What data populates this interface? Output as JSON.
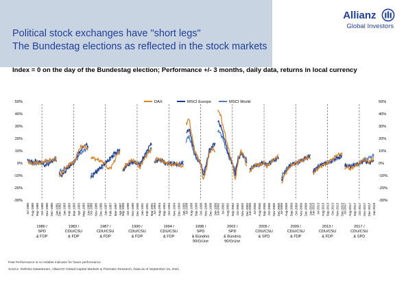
{
  "header": {
    "logo_text": "Allianz",
    "logo_mark": "allianz-eagle-logo",
    "logo_subtext": "Global Investors",
    "title_line1": "Political stock exchanges have \"short legs\"",
    "title_line2": "The Bundestag elections as reflected in the stock markets",
    "subtitle": "Index = 0 on the day of the Bundestag election; Performance +/- 3 months, daily data, returns in local currency"
  },
  "colors": {
    "brand": "#1f3f9b",
    "band": "#c9d4e2",
    "dax": "#d8822a",
    "msci_europe": "#1d3a8c",
    "msci_world": "#4f7bbd"
  },
  "chart_data": {
    "type": "line",
    "title": "",
    "xlabel": "",
    "ylabel": "",
    "ylim": [
      -0.3,
      0.5
    ],
    "yticks": [
      "50%",
      "40%",
      "30%",
      "20%",
      "10%",
      "0%",
      "-10%",
      "-20%",
      "-30%"
    ],
    "yticks_right": [
      "50%",
      "40%",
      "30%",
      "20%",
      "10%",
      "0%",
      "-10%",
      "-20%",
      "-30%"
    ],
    "grid": false,
    "legend_position": "top-center",
    "series_names": [
      "DAX",
      "MSCI Europe",
      "MSCI World"
    ],
    "election_markers": "dashed vertical line on each election day",
    "elections": [
      {
        "label_lines": [
          "1980 /",
          "SPD",
          "& FDP"
        ],
        "months": [
          "Jul-1980",
          "Aug-1980",
          "Sep-1980",
          "Oct-1980",
          "Nov-1980",
          "Dec-1980",
          "Jan-1981"
        ],
        "dax": [
          0.02,
          0.0,
          -0.01,
          0.01,
          0.0,
          0.0,
          0.02,
          0.01,
          0.03,
          0.02,
          0.04
        ],
        "msci_europe": [
          0.01,
          0.02,
          0.0,
          0.02,
          0.01,
          0.0,
          -0.02,
          -0.01,
          0.01,
          0.02,
          0.03
        ],
        "msci_world": [
          0.03,
          0.01,
          0.0,
          -0.01,
          0.01,
          0.0,
          0.01,
          0.02,
          0.01,
          0.03,
          0.05
        ]
      },
      {
        "label_lines": [
          "1983 /",
          "CDU/CSU",
          "& FDP"
        ],
        "months": [
          "Dec-1982",
          "Jan-1983",
          "Feb-1983",
          "Mar-1983",
          "Apr-1983",
          "May-1983",
          "Jun-1983"
        ],
        "dax": [
          -0.1,
          -0.08,
          -0.05,
          -0.02,
          0.0,
          0.0,
          0.06,
          0.12,
          0.14,
          0.13,
          0.11
        ],
        "msci_europe": [
          -0.09,
          -0.1,
          -0.07,
          -0.04,
          -0.02,
          0.0,
          0.05,
          0.09,
          0.12,
          0.15,
          0.14
        ],
        "msci_world": [
          -0.07,
          -0.06,
          -0.04,
          -0.03,
          -0.01,
          0.0,
          0.03,
          0.07,
          0.09,
          0.11,
          0.12
        ]
      },
      {
        "label_lines": [
          "1987 /",
          "CDU/CSU",
          "& FDP"
        ],
        "months": [
          "Oct-1986",
          "Nov-1986",
          "Dec-1986",
          "Jan-1987",
          "Feb-1987",
          "Mar-1987",
          "Apr-1987"
        ],
        "dax": [
          0.05,
          0.04,
          0.03,
          0.02,
          0.01,
          0.0,
          -0.05,
          -0.03,
          0.01,
          0.07,
          0.09
        ],
        "msci_europe": [
          -0.12,
          -0.09,
          -0.07,
          -0.04,
          -0.02,
          0.0,
          0.02,
          0.05,
          0.08,
          0.09,
          0.11
        ],
        "msci_world": [
          -0.1,
          -0.08,
          -0.06,
          -0.05,
          -0.03,
          0.0,
          0.02,
          0.04,
          0.06,
          0.08,
          0.1
        ]
      },
      {
        "label_lines": [
          "1990 /",
          "CDU/CSU",
          "& FDP"
        ],
        "months": [
          "Sep-1990",
          "Oct-1990",
          "Nov-1990",
          "Dec-1990",
          "Jan-1991",
          "Feb-1991",
          "Mar-1991"
        ],
        "dax": [
          -0.05,
          -0.02,
          0.0,
          0.03,
          0.01,
          0.0,
          -0.04,
          0.02,
          0.05,
          0.09,
          0.11
        ],
        "msci_europe": [
          -0.07,
          -0.03,
          -0.01,
          0.01,
          0.0,
          0.0,
          -0.02,
          0.04,
          0.08,
          0.13,
          0.16
        ],
        "msci_world": [
          -0.06,
          -0.03,
          -0.01,
          0.0,
          0.01,
          0.0,
          0.0,
          0.03,
          0.07,
          0.1,
          0.12
        ]
      },
      {
        "label_lines": [
          "1994 /",
          "CDU/CSU",
          "& FDP"
        ],
        "months": [
          "Jul-1994",
          "Aug-1994",
          "Sep-1994",
          "Oct-1994",
          "Nov-1994",
          "Dec-1994",
          "Jan-1995"
        ],
        "dax": [
          0.01,
          0.04,
          0.03,
          0.01,
          0.0,
          0.0,
          -0.02,
          -0.01,
          0.0,
          -0.03,
          -0.02
        ],
        "msci_europe": [
          0.0,
          0.02,
          0.03,
          0.01,
          -0.01,
          0.0,
          -0.01,
          0.0,
          -0.02,
          -0.01,
          0.0
        ],
        "msci_world": [
          0.01,
          0.03,
          0.02,
          0.01,
          0.0,
          0.0,
          0.0,
          -0.01,
          -0.01,
          0.0,
          0.01
        ]
      },
      {
        "label_lines": [
          "1998 /",
          "SPD",
          "& Bündnis",
          "90/Grüne"
        ],
        "months": [
          "Jul-1998",
          "Aug-1998",
          "Sep-1998",
          "Oct-1998",
          "Nov-1998",
          "Dec-1998",
          "Jan-1999"
        ],
        "dax": [
          0.32,
          0.36,
          0.22,
          0.1,
          0.05,
          0.0,
          -0.14,
          -0.04,
          0.08,
          0.12,
          0.1
        ],
        "msci_europe": [
          0.24,
          0.28,
          0.18,
          0.08,
          0.03,
          0.0,
          -0.1,
          -0.02,
          0.1,
          0.14,
          0.16
        ],
        "msci_world": [
          0.18,
          0.22,
          0.14,
          0.06,
          0.02,
          0.0,
          -0.08,
          0.0,
          0.09,
          0.12,
          0.15
        ]
      },
      {
        "label_lines": [
          "2002 /",
          "SPD",
          "& Bündnis",
          "90/Grüne"
        ],
        "months": [
          "Jun-2002",
          "Jul-2002",
          "Aug-2002",
          "Sep-2002",
          "Oct-2002",
          "Nov-2002",
          "Dec-2002"
        ],
        "dax": [
          0.44,
          0.38,
          0.28,
          0.18,
          0.08,
          0.0,
          -0.14,
          0.02,
          0.1,
          0.06,
          -0.03
        ],
        "msci_europe": [
          0.34,
          0.3,
          0.22,
          0.13,
          0.05,
          0.0,
          -0.09,
          0.03,
          0.08,
          0.05,
          0.0
        ],
        "msci_world": [
          0.26,
          0.24,
          0.18,
          0.1,
          0.04,
          0.0,
          -0.06,
          0.04,
          0.08,
          0.06,
          0.02
        ]
      },
      {
        "label_lines": [
          "2005 /",
          "CDU/CSU",
          "& SPD"
        ],
        "months": [
          "Jun-2005",
          "Jul-2005",
          "Aug-2005",
          "Sep-2005",
          "Oct-2005",
          "Nov-2005",
          "Dec-2005"
        ],
        "dax": [
          -0.07,
          -0.04,
          -0.02,
          -0.01,
          -0.01,
          0.0,
          -0.03,
          0.0,
          0.02,
          0.04,
          0.07
        ],
        "msci_europe": [
          -0.06,
          -0.04,
          -0.02,
          -0.02,
          0.0,
          0.0,
          -0.02,
          0.0,
          0.02,
          0.03,
          0.05
        ],
        "msci_world": [
          -0.05,
          -0.03,
          -0.02,
          -0.01,
          0.0,
          0.0,
          -0.01,
          0.01,
          0.02,
          0.03,
          0.04
        ]
      },
      {
        "label_lines": [
          "2009 /",
          "CDU/CSU",
          "& FDP"
        ],
        "months": [
          "Jul-2009",
          "Aug-2009",
          "Sep-2009",
          "Oct-2009",
          "Nov-2009",
          "Dec-2009",
          "Jan-2010"
        ],
        "dax": [
          -0.17,
          -0.1,
          -0.06,
          -0.03,
          -0.01,
          0.0,
          0.01,
          0.02,
          0.03,
          0.05,
          0.04
        ],
        "msci_europe": [
          -0.15,
          -0.09,
          -0.05,
          -0.02,
          -0.01,
          0.0,
          0.0,
          0.02,
          0.04,
          0.05,
          0.05
        ],
        "msci_world": [
          -0.12,
          -0.07,
          -0.04,
          -0.02,
          0.0,
          0.0,
          0.01,
          0.02,
          0.03,
          0.04,
          0.06
        ]
      },
      {
        "label_lines": [
          "2013 /",
          "CDU/CSU",
          "& FDP"
        ],
        "months": [
          "Jun-2013",
          "Jul-2013",
          "Aug-2013",
          "Sep-2013",
          "Oct-2013",
          "Nov-2013",
          "Dec-2013"
        ],
        "dax": [
          -0.08,
          -0.06,
          -0.04,
          -0.02,
          -0.01,
          0.0,
          0.02,
          0.04,
          0.06,
          0.07,
          0.08
        ],
        "msci_europe": [
          -0.07,
          -0.05,
          -0.03,
          -0.01,
          0.0,
          0.0,
          0.01,
          0.03,
          0.04,
          0.05,
          0.06
        ],
        "msci_world": [
          -0.06,
          -0.04,
          -0.02,
          -0.01,
          0.0,
          0.0,
          0.01,
          0.02,
          0.03,
          0.04,
          0.05
        ]
      },
      {
        "label_lines": [
          "2017 /",
          "CDU/CSU",
          "& SPD"
        ],
        "months": [
          "Jul-2017",
          "Aug-2017",
          "Sep-2017",
          "Oct-2017",
          "Nov-2017",
          "Dec-2017",
          "Jan-2018"
        ],
        "dax": [
          -0.04,
          -0.03,
          -0.05,
          -0.03,
          -0.02,
          0.0,
          0.02,
          0.03,
          0.01,
          0.02,
          0.04
        ],
        "msci_europe": [
          -0.02,
          -0.02,
          -0.03,
          -0.02,
          -0.01,
          0.0,
          0.01,
          0.02,
          0.0,
          0.01,
          0.02
        ],
        "msci_world": [
          -0.03,
          -0.02,
          -0.02,
          -0.01,
          -0.01,
          0.0,
          0.02,
          0.03,
          0.04,
          0.05,
          0.06
        ]
      }
    ]
  },
  "footnotes": {
    "line1": "Past Performance is no reliable indicator for future performance",
    "line2": "Source: Refinitiv Datastream, AllianzGI Global Capital Markets & Thematic Research, Data as of September 15, 2021"
  }
}
